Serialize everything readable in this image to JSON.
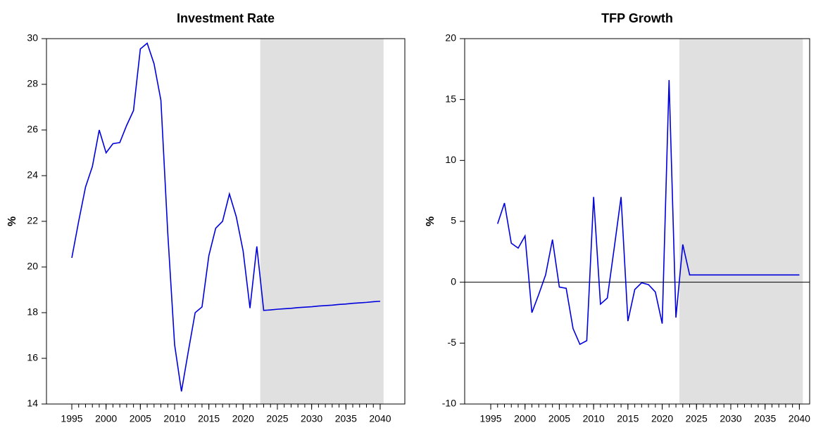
{
  "chart_data": [
    {
      "type": "line",
      "title": "Investment Rate",
      "y_label": "%",
      "x": [
        1995,
        1996,
        1997,
        1998,
        1999,
        2000,
        2001,
        2002,
        2003,
        2004,
        2005,
        2006,
        2007,
        2008,
        2009,
        2010,
        2011,
        2012,
        2013,
        2014,
        2015,
        2016,
        2017,
        2018,
        2019,
        2020,
        2021,
        2022,
        2023,
        2024,
        2025,
        2026,
        2027,
        2028,
        2029,
        2030,
        2031,
        2032,
        2033,
        2034,
        2035,
        2036,
        2037,
        2038,
        2039,
        2040
      ],
      "series": [
        {
          "name": "Investment Rate",
          "color": "#0000dd",
          "values": [
            20.4,
            22.0,
            23.5,
            24.4,
            26.0,
            25.0,
            25.4,
            25.45,
            26.2,
            26.85,
            29.55,
            29.8,
            28.9,
            27.3,
            21.5,
            16.6,
            14.55,
            16.3,
            18.0,
            18.25,
            20.5,
            21.7,
            22.0,
            23.2,
            22.2,
            20.7,
            18.2,
            20.9,
            18.1,
            18.12,
            18.15,
            18.17,
            18.19,
            18.22,
            18.24,
            18.26,
            18.29,
            18.31,
            18.33,
            18.36,
            18.38,
            18.41,
            18.43,
            18.45,
            18.48,
            18.5
          ]
        }
      ],
      "xlim": [
        1991.3,
        2043.6
      ],
      "xticks": [
        1995,
        2000,
        2005,
        2010,
        2015,
        2020,
        2025,
        2030,
        2035,
        2040
      ],
      "x_minor_ticks": [
        1995,
        1996,
        1997,
        1998,
        1999,
        2000,
        2001,
        2002,
        2003,
        2004,
        2005,
        2006,
        2007,
        2008,
        2009,
        2010,
        2011,
        2012,
        2013,
        2014,
        2015,
        2016,
        2017,
        2018,
        2019,
        2020,
        2021,
        2022,
        2023,
        2024,
        2025,
        2026,
        2027,
        2028,
        2029,
        2030,
        2031,
        2032,
        2033,
        2034,
        2035,
        2036,
        2037,
        2038,
        2039,
        2040
      ],
      "ylim": [
        14,
        30
      ],
      "yticks": [
        14,
        16,
        18,
        20,
        22,
        24,
        26,
        28,
        30
      ],
      "shade": {
        "from": 2022.5,
        "to": 2040.5,
        "color": "#e0e0e0"
      }
    },
    {
      "type": "line",
      "title": "TFP Growth",
      "y_label": "%",
      "x": [
        1996,
        1997,
        1998,
        1999,
        2000,
        2001,
        2002,
        2003,
        2004,
        2005,
        2006,
        2007,
        2008,
        2009,
        2010,
        2011,
        2012,
        2013,
        2014,
        2015,
        2016,
        2017,
        2018,
        2019,
        2020,
        2021,
        2022,
        2023,
        2024,
        2025,
        2026,
        2027,
        2028,
        2029,
        2030,
        2031,
        2032,
        2033,
        2034,
        2035,
        2036,
        2037,
        2038,
        2039,
        2040
      ],
      "series": [
        {
          "name": "TFP Growth",
          "color": "#0000dd",
          "values": [
            4.8,
            6.5,
            3.2,
            2.8,
            3.8,
            -2.5,
            -1.0,
            0.6,
            3.5,
            -0.4,
            -0.5,
            -3.8,
            -5.1,
            -4.8,
            7.0,
            -1.8,
            -1.3,
            2.8,
            7.0,
            -3.2,
            -0.6,
            -0.05,
            -0.2,
            -0.8,
            -3.4,
            16.6,
            -2.9,
            3.1,
            0.6,
            0.6,
            0.6,
            0.6,
            0.6,
            0.6,
            0.6,
            0.6,
            0.6,
            0.6,
            0.6,
            0.6,
            0.6,
            0.6,
            0.6,
            0.6,
            0.6
          ]
        }
      ],
      "xlim": [
        1991.2,
        2041.5
      ],
      "xticks": [
        1995,
        2000,
        2005,
        2010,
        2015,
        2020,
        2025,
        2030,
        2035,
        2040
      ],
      "x_minor_ticks": [
        1995,
        1996,
        1997,
        1998,
        1999,
        2000,
        2001,
        2002,
        2003,
        2004,
        2005,
        2006,
        2007,
        2008,
        2009,
        2010,
        2011,
        2012,
        2013,
        2014,
        2015,
        2016,
        2017,
        2018,
        2019,
        2020,
        2021,
        2022,
        2023,
        2024,
        2025,
        2026,
        2027,
        2028,
        2029,
        2030,
        2031,
        2032,
        2033,
        2034,
        2035,
        2036,
        2037,
        2038,
        2039,
        2040
      ],
      "ylim": [
        -10,
        20
      ],
      "yticks": [
        -10,
        -5,
        0,
        5,
        10,
        15,
        20
      ],
      "hline": 0,
      "shade": {
        "from": 2022.5,
        "to": 2040.5,
        "color": "#e0e0e0"
      }
    }
  ]
}
